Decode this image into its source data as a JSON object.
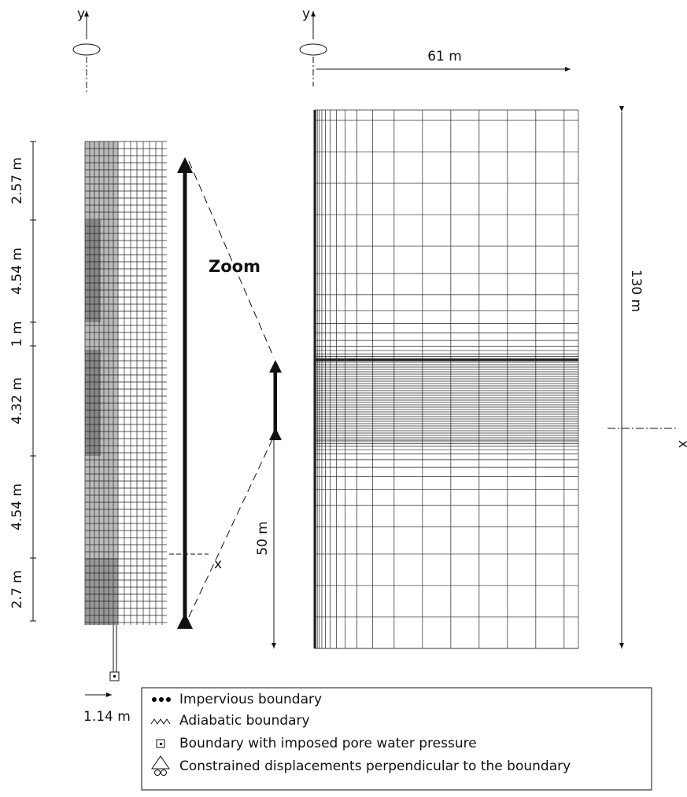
{
  "left_model": {
    "axis_y": "y",
    "axis_x": "x",
    "dimensions": [
      "2.57 m",
      "4.54 m",
      "1 m",
      "4.32 m",
      "4.54 m",
      "2.7 m"
    ],
    "offset": "1.14 m"
  },
  "zoom_label": "Zoom",
  "right_model": {
    "axis_y": "y",
    "axis_x": "x",
    "width": "61 m",
    "height": "130 m",
    "lower_height": "50 m"
  },
  "legend": {
    "items": [
      "Impervious boundary",
      "Adiabatic boundary",
      "Boundary with imposed pore water pressure",
      "Constrained displacements perpendicular to the boundary"
    ]
  }
}
